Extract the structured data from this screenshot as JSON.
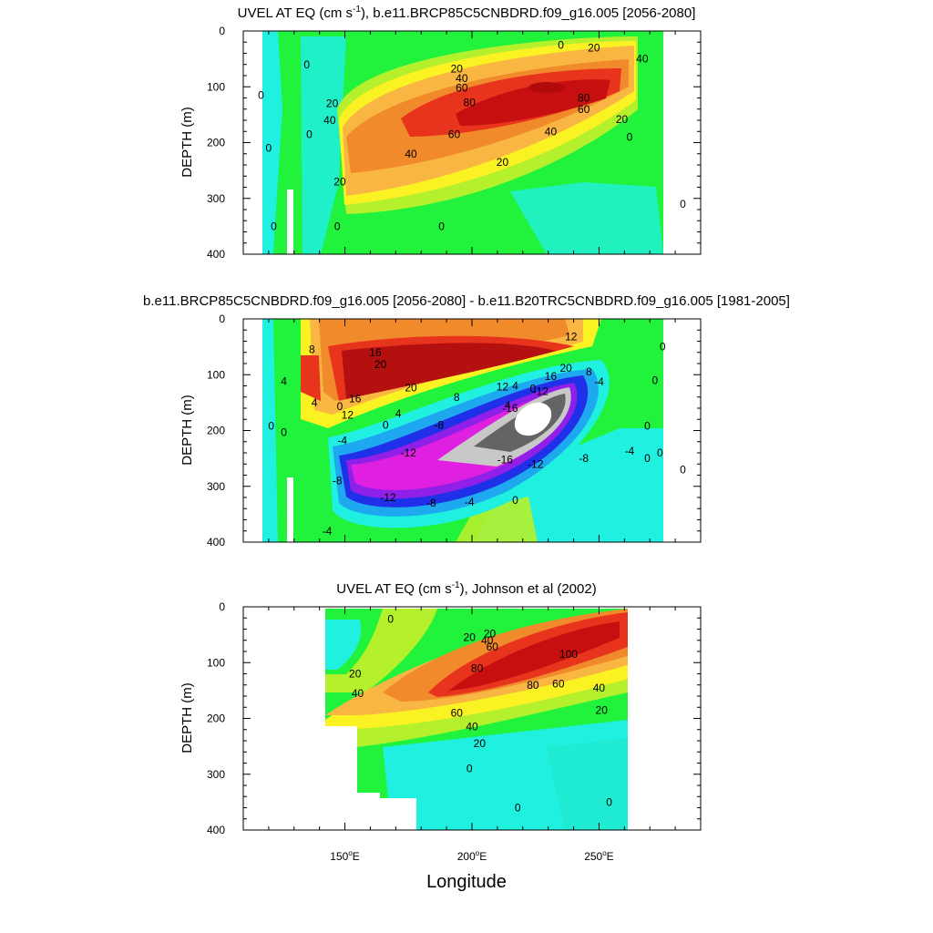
{
  "chart_data": [
    {
      "type": "heatmap",
      "title_main": "UVEL AT EQ (cm s",
      "title_sup": "-1",
      "title_rest": "), b.e11.BRCP85C5CNBDRD.f09_g16.005 [2056-2080]",
      "ylabel": "DEPTH (m)",
      "ylim": [
        0,
        400
      ],
      "yticks": [
        0,
        100,
        200,
        300,
        400
      ],
      "xlim": [
        110,
        290
      ],
      "colors": {
        "low": "#20f0e0",
        "mid1": "#21f23c",
        "mid2": "#b5f02c",
        "mid3": "#fbf223",
        "mid4": "#f9b642",
        "mid5": "#f08a2a",
        "mid6": "#e8341d",
        "core": "#c80f0f"
      },
      "contour_labels": [
        {
          "text": "0",
          "lon": 135,
          "depth": 60
        },
        {
          "text": "0",
          "lon": 136,
          "depth": 185
        },
        {
          "text": "0",
          "lon": 122,
          "depth": 350
        },
        {
          "text": "20",
          "lon": 194,
          "depth": 68
        },
        {
          "text": "40",
          "lon": 196,
          "depth": 85
        },
        {
          "text": "60",
          "lon": 196,
          "depth": 102
        },
        {
          "text": "80",
          "lon": 199,
          "depth": 128
        },
        {
          "text": "60",
          "lon": 193,
          "depth": 185
        },
        {
          "text": "40",
          "lon": 176,
          "depth": 220
        },
        {
          "text": "20",
          "lon": 148,
          "depth": 270
        },
        {
          "text": "20",
          "lon": 212,
          "depth": 235
        },
        {
          "text": "40",
          "lon": 231,
          "depth": 180
        },
        {
          "text": "60",
          "lon": 244,
          "depth": 140
        },
        {
          "text": "80",
          "lon": 244,
          "depth": 120
        },
        {
          "text": "20",
          "lon": 248,
          "depth": 30
        },
        {
          "text": "0",
          "lon": 235,
          "depth": 25
        },
        {
          "text": "40",
          "lon": 267,
          "depth": 50
        },
        {
          "text": "20",
          "lon": 259,
          "depth": 158
        },
        {
          "text": "0",
          "lon": 262,
          "depth": 190
        },
        {
          "text": "0",
          "lon": 283,
          "depth": 310
        },
        {
          "text": "0",
          "lon": 147,
          "depth": 350
        },
        {
          "text": "0",
          "lon": 188,
          "depth": 350
        },
        {
          "text": "20",
          "lon": 145,
          "depth": 130
        },
        {
          "text": "40",
          "lon": 144,
          "depth": 160
        },
        {
          "text": "0",
          "lon": 117,
          "depth": 115
        },
        {
          "text": "0",
          "lon": 120,
          "depth": 210
        }
      ]
    },
    {
      "type": "heatmap",
      "title": "b.e11.BRCP85C5CNBDRD.f09_g16.005 [2056-2080] - b.e11.B20TRC5CNBDRD.f09_g16.005 [1981-2005]",
      "ylabel": "DEPTH (m)",
      "ylim": [
        0,
        400
      ],
      "yticks": [
        0,
        100,
        200,
        300,
        400
      ],
      "xlim": [
        110,
        290
      ],
      "colors": {
        "pos_strong": "#b41010",
        "pos_med": "#e8341d",
        "pos_light": "#f08a2a",
        "pos_faint": "#f9b642",
        "pos_yellow": "#fbf223",
        "zero": "#21f23c",
        "neg_faint": "#20f0e0",
        "neg_light": "#1ea8f0",
        "neg_med": "#2030e8",
        "neg_strong": "#9020e8",
        "neg_deep": "#e020e0",
        "neg_core": "#c8c8c8",
        "neg_extreme": "#646464"
      },
      "contour_labels": [
        {
          "text": "8",
          "lon": 137,
          "depth": 55
        },
        {
          "text": "16",
          "lon": 162,
          "depth": 60
        },
        {
          "text": "20",
          "lon": 164,
          "depth": 82
        },
        {
          "text": "4",
          "lon": 126,
          "depth": 112
        },
        {
          "text": "4",
          "lon": 138,
          "depth": 150
        },
        {
          "text": "16",
          "lon": 154,
          "depth": 143
        },
        {
          "text": "20",
          "lon": 176,
          "depth": 123
        },
        {
          "text": "4",
          "lon": 171,
          "depth": 170
        },
        {
          "text": "8",
          "lon": 194,
          "depth": 140
        },
        {
          "text": "12",
          "lon": 151,
          "depth": 172
        },
        {
          "text": "0",
          "lon": 148,
          "depth": 157
        },
        {
          "text": "0",
          "lon": 166,
          "depth": 190
        },
        {
          "text": "4",
          "lon": 214,
          "depth": 155
        },
        {
          "text": "12",
          "lon": 212,
          "depth": 122
        },
        {
          "text": "16",
          "lon": 231,
          "depth": 103
        },
        {
          "text": "20",
          "lon": 237,
          "depth": 88
        },
        {
          "text": "12",
          "lon": 239,
          "depth": 32
        },
        {
          "text": "8",
          "lon": 246,
          "depth": 95
        },
        {
          "text": "-4",
          "lon": 250,
          "depth": 113
        },
        {
          "text": "4",
          "lon": 217,
          "depth": 120
        },
        {
          "text": "0",
          "lon": 224,
          "depth": 125
        },
        {
          "text": "-12",
          "lon": 227,
          "depth": 130
        },
        {
          "text": "-16",
          "lon": 215,
          "depth": 160
        },
        {
          "text": "-8",
          "lon": 187,
          "depth": 190
        },
        {
          "text": "-4",
          "lon": 149,
          "depth": 218
        },
        {
          "text": "-12",
          "lon": 175,
          "depth": 240
        },
        {
          "text": "-16",
          "lon": 213,
          "depth": 252
        },
        {
          "text": "-12",
          "lon": 225,
          "depth": 260
        },
        {
          "text": "-8",
          "lon": 244,
          "depth": 250
        },
        {
          "text": "-4",
          "lon": 262,
          "depth": 237
        },
        {
          "text": "-8",
          "lon": 147,
          "depth": 290
        },
        {
          "text": "-12",
          "lon": 167,
          "depth": 320
        },
        {
          "text": "-8",
          "lon": 184,
          "depth": 330
        },
        {
          "text": "-4",
          "lon": 199,
          "depth": 328
        },
        {
          "text": "0",
          "lon": 217,
          "depth": 325
        },
        {
          "text": "-4",
          "lon": 143,
          "depth": 380
        },
        {
          "text": "0",
          "lon": 121,
          "depth": 192
        },
        {
          "text": "0",
          "lon": 126,
          "depth": 203
        },
        {
          "text": "0",
          "lon": 275,
          "depth": 50
        },
        {
          "text": "0",
          "lon": 272,
          "depth": 110
        },
        {
          "text": "0",
          "lon": 269,
          "depth": 192
        },
        {
          "text": "0",
          "lon": 269,
          "depth": 250
        },
        {
          "text": "0",
          "lon": 283,
          "depth": 270
        },
        {
          "text": "0",
          "lon": 274,
          "depth": 240
        }
      ]
    },
    {
      "type": "heatmap",
      "title_main": "UVEL AT EQ (cm s",
      "title_sup": "-1",
      "title_rest": "), Johnson et al (2002)",
      "ylabel": "DEPTH (m)",
      "xlabel": "Longitude",
      "ylim": [
        0,
        400
      ],
      "yticks": [
        0,
        100,
        200,
        300,
        400
      ],
      "xlim": [
        110,
        290
      ],
      "xticks": [
        150,
        200,
        250
      ],
      "xtick_labels": [
        "150",
        "200",
        "250"
      ],
      "xtick_units": [
        "o",
        "E"
      ],
      "colors": {
        "low": "#20f0e0",
        "mid1": "#21f23c",
        "mid2": "#b5f02c",
        "mid3": "#fbf223",
        "mid4": "#f9b642",
        "mid5": "#f08a2a",
        "mid6": "#e8341d",
        "core": "#c80f0f"
      },
      "contour_labels": [
        {
          "text": "0",
          "lon": 168,
          "depth": 22
        },
        {
          "text": "20",
          "lon": 199,
          "depth": 55
        },
        {
          "text": "20",
          "lon": 207,
          "depth": 48
        },
        {
          "text": "40",
          "lon": 206,
          "depth": 60
        },
        {
          "text": "60",
          "lon": 208,
          "depth": 72
        },
        {
          "text": "20",
          "lon": 154,
          "depth": 120
        },
        {
          "text": "40",
          "lon": 155,
          "depth": 155
        },
        {
          "text": "80",
          "lon": 202,
          "depth": 110
        },
        {
          "text": "100",
          "lon": 238,
          "depth": 85
        },
        {
          "text": "80",
          "lon": 224,
          "depth": 140
        },
        {
          "text": "60",
          "lon": 234,
          "depth": 138
        },
        {
          "text": "40",
          "lon": 250,
          "depth": 145
        },
        {
          "text": "20",
          "lon": 251,
          "depth": 185
        },
        {
          "text": "60",
          "lon": 194,
          "depth": 190
        },
        {
          "text": "40",
          "lon": 200,
          "depth": 215
        },
        {
          "text": "20",
          "lon": 203,
          "depth": 245
        },
        {
          "text": "0",
          "lon": 199,
          "depth": 290
        },
        {
          "text": "0",
          "lon": 218,
          "depth": 360
        },
        {
          "text": "0",
          "lon": 254,
          "depth": 350
        }
      ]
    }
  ]
}
